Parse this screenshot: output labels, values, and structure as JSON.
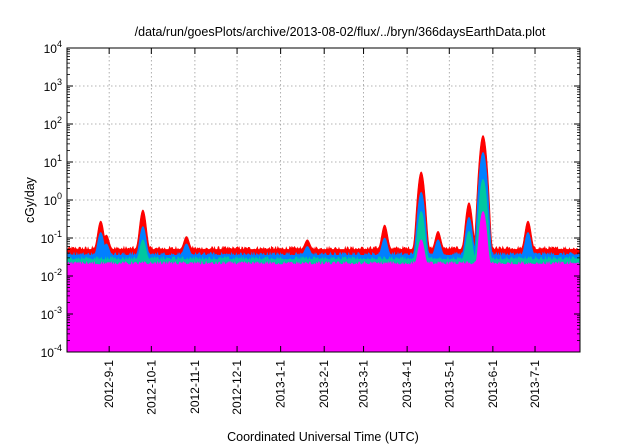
{
  "chart_data": {
    "type": "line",
    "title": "/data/run/goesPlots/archive/2013-08-02/flux/../bryn/366daysEarthData.plot",
    "xlabel": "Coordinated Universal Time (UTC)",
    "ylabel": "cGy/day",
    "yscale": "log",
    "ylim": [
      0.0001,
      10000
    ],
    "xlim": [
      "2012-08-02",
      "2013-08-02"
    ],
    "grid": true,
    "legend": "none",
    "y_ticks": [
      {
        "base": "10",
        "exp": "-4",
        "value": 0.0001
      },
      {
        "base": "10",
        "exp": "-3",
        "value": 0.001
      },
      {
        "base": "10",
        "exp": "-2",
        "value": 0.01
      },
      {
        "base": "10",
        "exp": "-1",
        "value": 0.1
      },
      {
        "base": "10",
        "exp": "0",
        "value": 1
      },
      {
        "base": "10",
        "exp": "1",
        "value": 10
      },
      {
        "base": "10",
        "exp": "2",
        "value": 100
      },
      {
        "base": "10",
        "exp": "3",
        "value": 1000
      },
      {
        "base": "10",
        "exp": "4",
        "value": 10000
      }
    ],
    "x_ticks": [
      {
        "label": "2012-9-1",
        "date": "2012-09-01"
      },
      {
        "label": "2012-10-1",
        "date": "2012-10-01"
      },
      {
        "label": "2012-11-1",
        "date": "2012-11-01"
      },
      {
        "label": "2012-12-1",
        "date": "2012-12-01"
      },
      {
        "label": "2013-1-1",
        "date": "2013-01-01"
      },
      {
        "label": "2013-2-1",
        "date": "2013-02-01"
      },
      {
        "label": "2013-3-1",
        "date": "2013-03-01"
      },
      {
        "label": "2013-4-1",
        "date": "2013-04-01"
      },
      {
        "label": "2013-5-1",
        "date": "2013-05-01"
      },
      {
        "label": "2013-6-1",
        "date": "2013-06-01"
      },
      {
        "label": "2013-7-1",
        "date": "2013-07-01"
      }
    ],
    "series": [
      {
        "color": "#ff0000",
        "baseline": 0.05,
        "x": [
          "2012-08-26",
          "2012-08-30",
          "2012-09-25",
          "2012-10-26",
          "2013-01-20",
          "2013-03-16",
          "2013-04-11",
          "2013-04-23",
          "2013-05-15",
          "2013-05-22",
          "2013-05-25",
          "2013-06-26"
        ],
        "y": [
          0.28,
          0.12,
          0.55,
          0.11,
          0.09,
          0.22,
          5.5,
          0.15,
          0.85,
          0.3,
          50,
          0.28
        ]
      },
      {
        "color": "#0080ff",
        "baseline": 0.035,
        "x": [
          "2012-08-26",
          "2012-08-30",
          "2012-09-25",
          "2012-10-26",
          "2013-01-20",
          "2013-03-16",
          "2013-04-11",
          "2013-04-23",
          "2013-05-15",
          "2013-05-22",
          "2013-05-25",
          "2013-06-26"
        ],
        "y": [
          0.14,
          0.07,
          0.2,
          0.07,
          0.06,
          0.1,
          1.6,
          0.09,
          0.35,
          0.15,
          18,
          0.14
        ]
      },
      {
        "color": "#00c8a0",
        "baseline": 0.027,
        "x": [
          "2012-09-25",
          "2013-04-11",
          "2013-05-15",
          "2013-05-25"
        ],
        "y": [
          0.09,
          0.5,
          0.15,
          3.5
        ]
      },
      {
        "color": "#ff00ff",
        "baseline": 0.02,
        "x": [
          "2013-04-11",
          "2013-05-25"
        ],
        "y": [
          0.09,
          0.5
        ]
      }
    ]
  }
}
